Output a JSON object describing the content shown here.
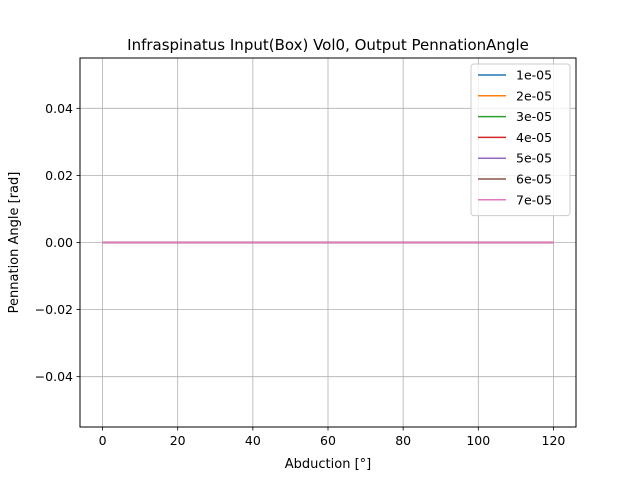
{
  "chart_data": {
    "type": "line",
    "title": "Infraspinatus Input(Box) Vol0, Output PennationAngle",
    "xlabel": "Abduction [°]",
    "ylabel": "Pennation Angle [rad]",
    "xlim": [
      -6,
      126
    ],
    "ylim": [
      -0.055,
      0.055
    ],
    "x_ticks": [
      0,
      20,
      40,
      60,
      80,
      100,
      120
    ],
    "x_tick_labels": [
      "0",
      "20",
      "40",
      "60",
      "80",
      "100",
      "120"
    ],
    "y_ticks": [
      -0.04,
      -0.02,
      0.0,
      0.02,
      0.04
    ],
    "y_tick_labels": [
      "−0.04",
      "−0.02",
      "0.00",
      "0.02",
      "0.04"
    ],
    "grid": true,
    "legend_position": "top-right",
    "x": [
      0,
      120
    ],
    "series": [
      {
        "name": "1e-05",
        "color": "#1f77b4",
        "values": [
          0.0,
          0.0
        ]
      },
      {
        "name": "2e-05",
        "color": "#ff7f0e",
        "values": [
          0.0,
          0.0
        ]
      },
      {
        "name": "3e-05",
        "color": "#2ca02c",
        "values": [
          0.0,
          0.0
        ]
      },
      {
        "name": "4e-05",
        "color": "#d62728",
        "values": [
          0.0,
          0.0
        ]
      },
      {
        "name": "5e-05",
        "color": "#9467bd",
        "values": [
          0.0,
          0.0
        ]
      },
      {
        "name": "6e-05",
        "color": "#8c564b",
        "values": [
          0.0,
          0.0
        ]
      },
      {
        "name": "7e-05",
        "color": "#e377c2",
        "values": [
          0.0,
          0.0
        ]
      }
    ]
  }
}
